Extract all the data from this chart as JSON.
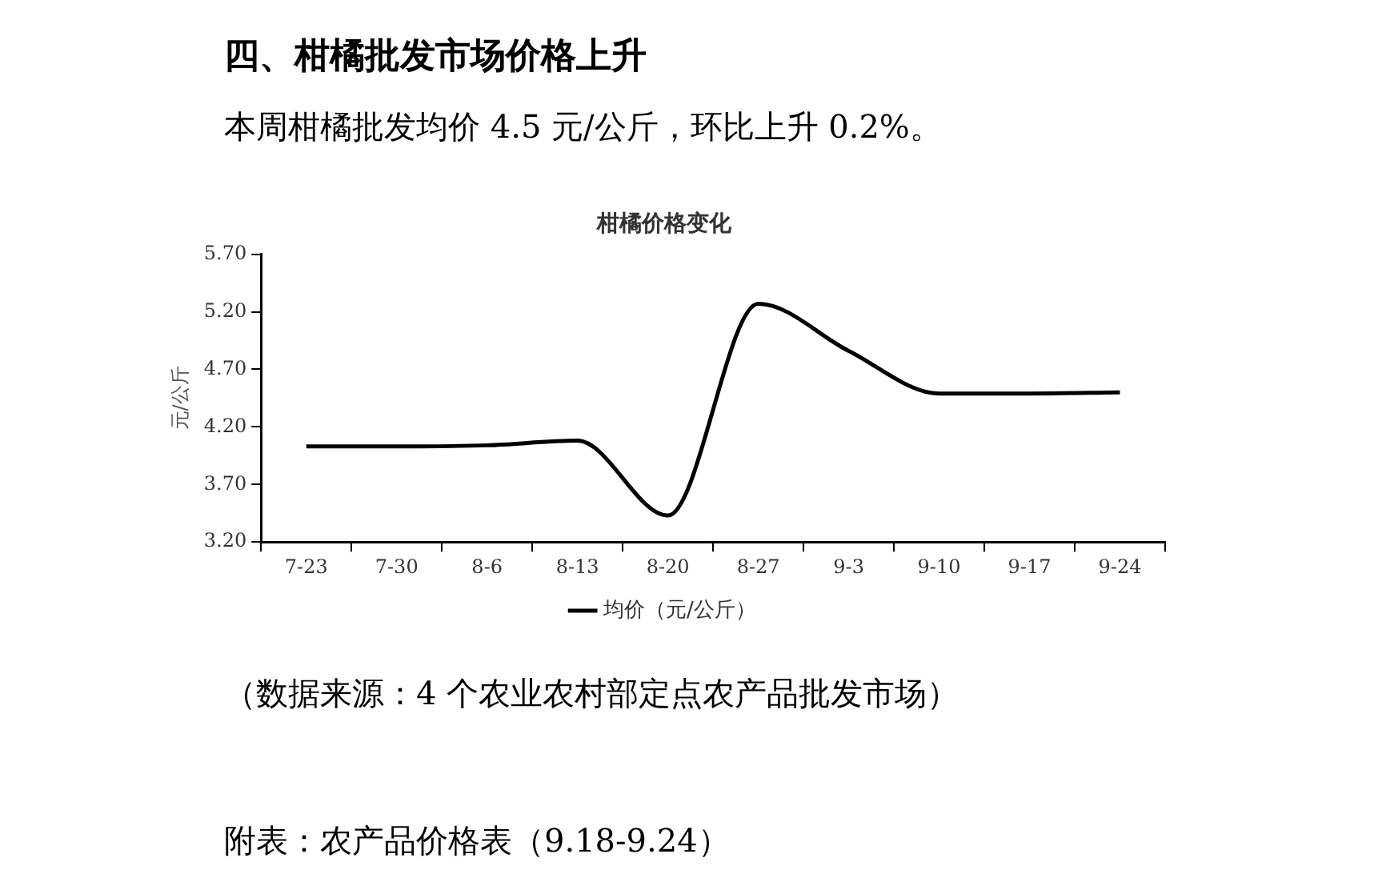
{
  "chart_data": {
    "type": "line",
    "title": "柑橘价格变化",
    "ylabel": "元/公斤",
    "annotations": [
      "四、柑橘批发市场价格上升",
      "本周柑橘批发均价 4.5 元/公斤，环比上升 0.2%。",
      "（数据来源：4 个农业农村部定点农产品批发市场）",
      "附表：农产品价格表（9.18-9.24）"
    ],
    "categories": [
      "7-23",
      "7-30",
      "8-6",
      "8-13",
      "8-20",
      "8-27",
      "9-3",
      "9-10",
      "9-17",
      "9-24"
    ],
    "series": [
      {
        "name": "均价（元/公斤）",
        "color": "#000000",
        "values": [
          4.03,
          4.03,
          4.04,
          4.08,
          3.43,
          5.27,
          4.86,
          4.49,
          4.49,
          4.5
        ]
      }
    ],
    "ylim": [
      3.2,
      5.7
    ],
    "yticks": [
      {
        "value": 3.2,
        "label": "3.20"
      },
      {
        "value": 3.7,
        "label": "3.70"
      },
      {
        "value": 4.2,
        "label": "4.20"
      },
      {
        "value": 4.7,
        "label": "4.70"
      },
      {
        "value": 5.2,
        "label": "5.20"
      },
      {
        "value": 5.7,
        "label": "5.70"
      }
    ],
    "grid": false,
    "legend": "bottom",
    "marker": "none",
    "line_style": "solid"
  }
}
